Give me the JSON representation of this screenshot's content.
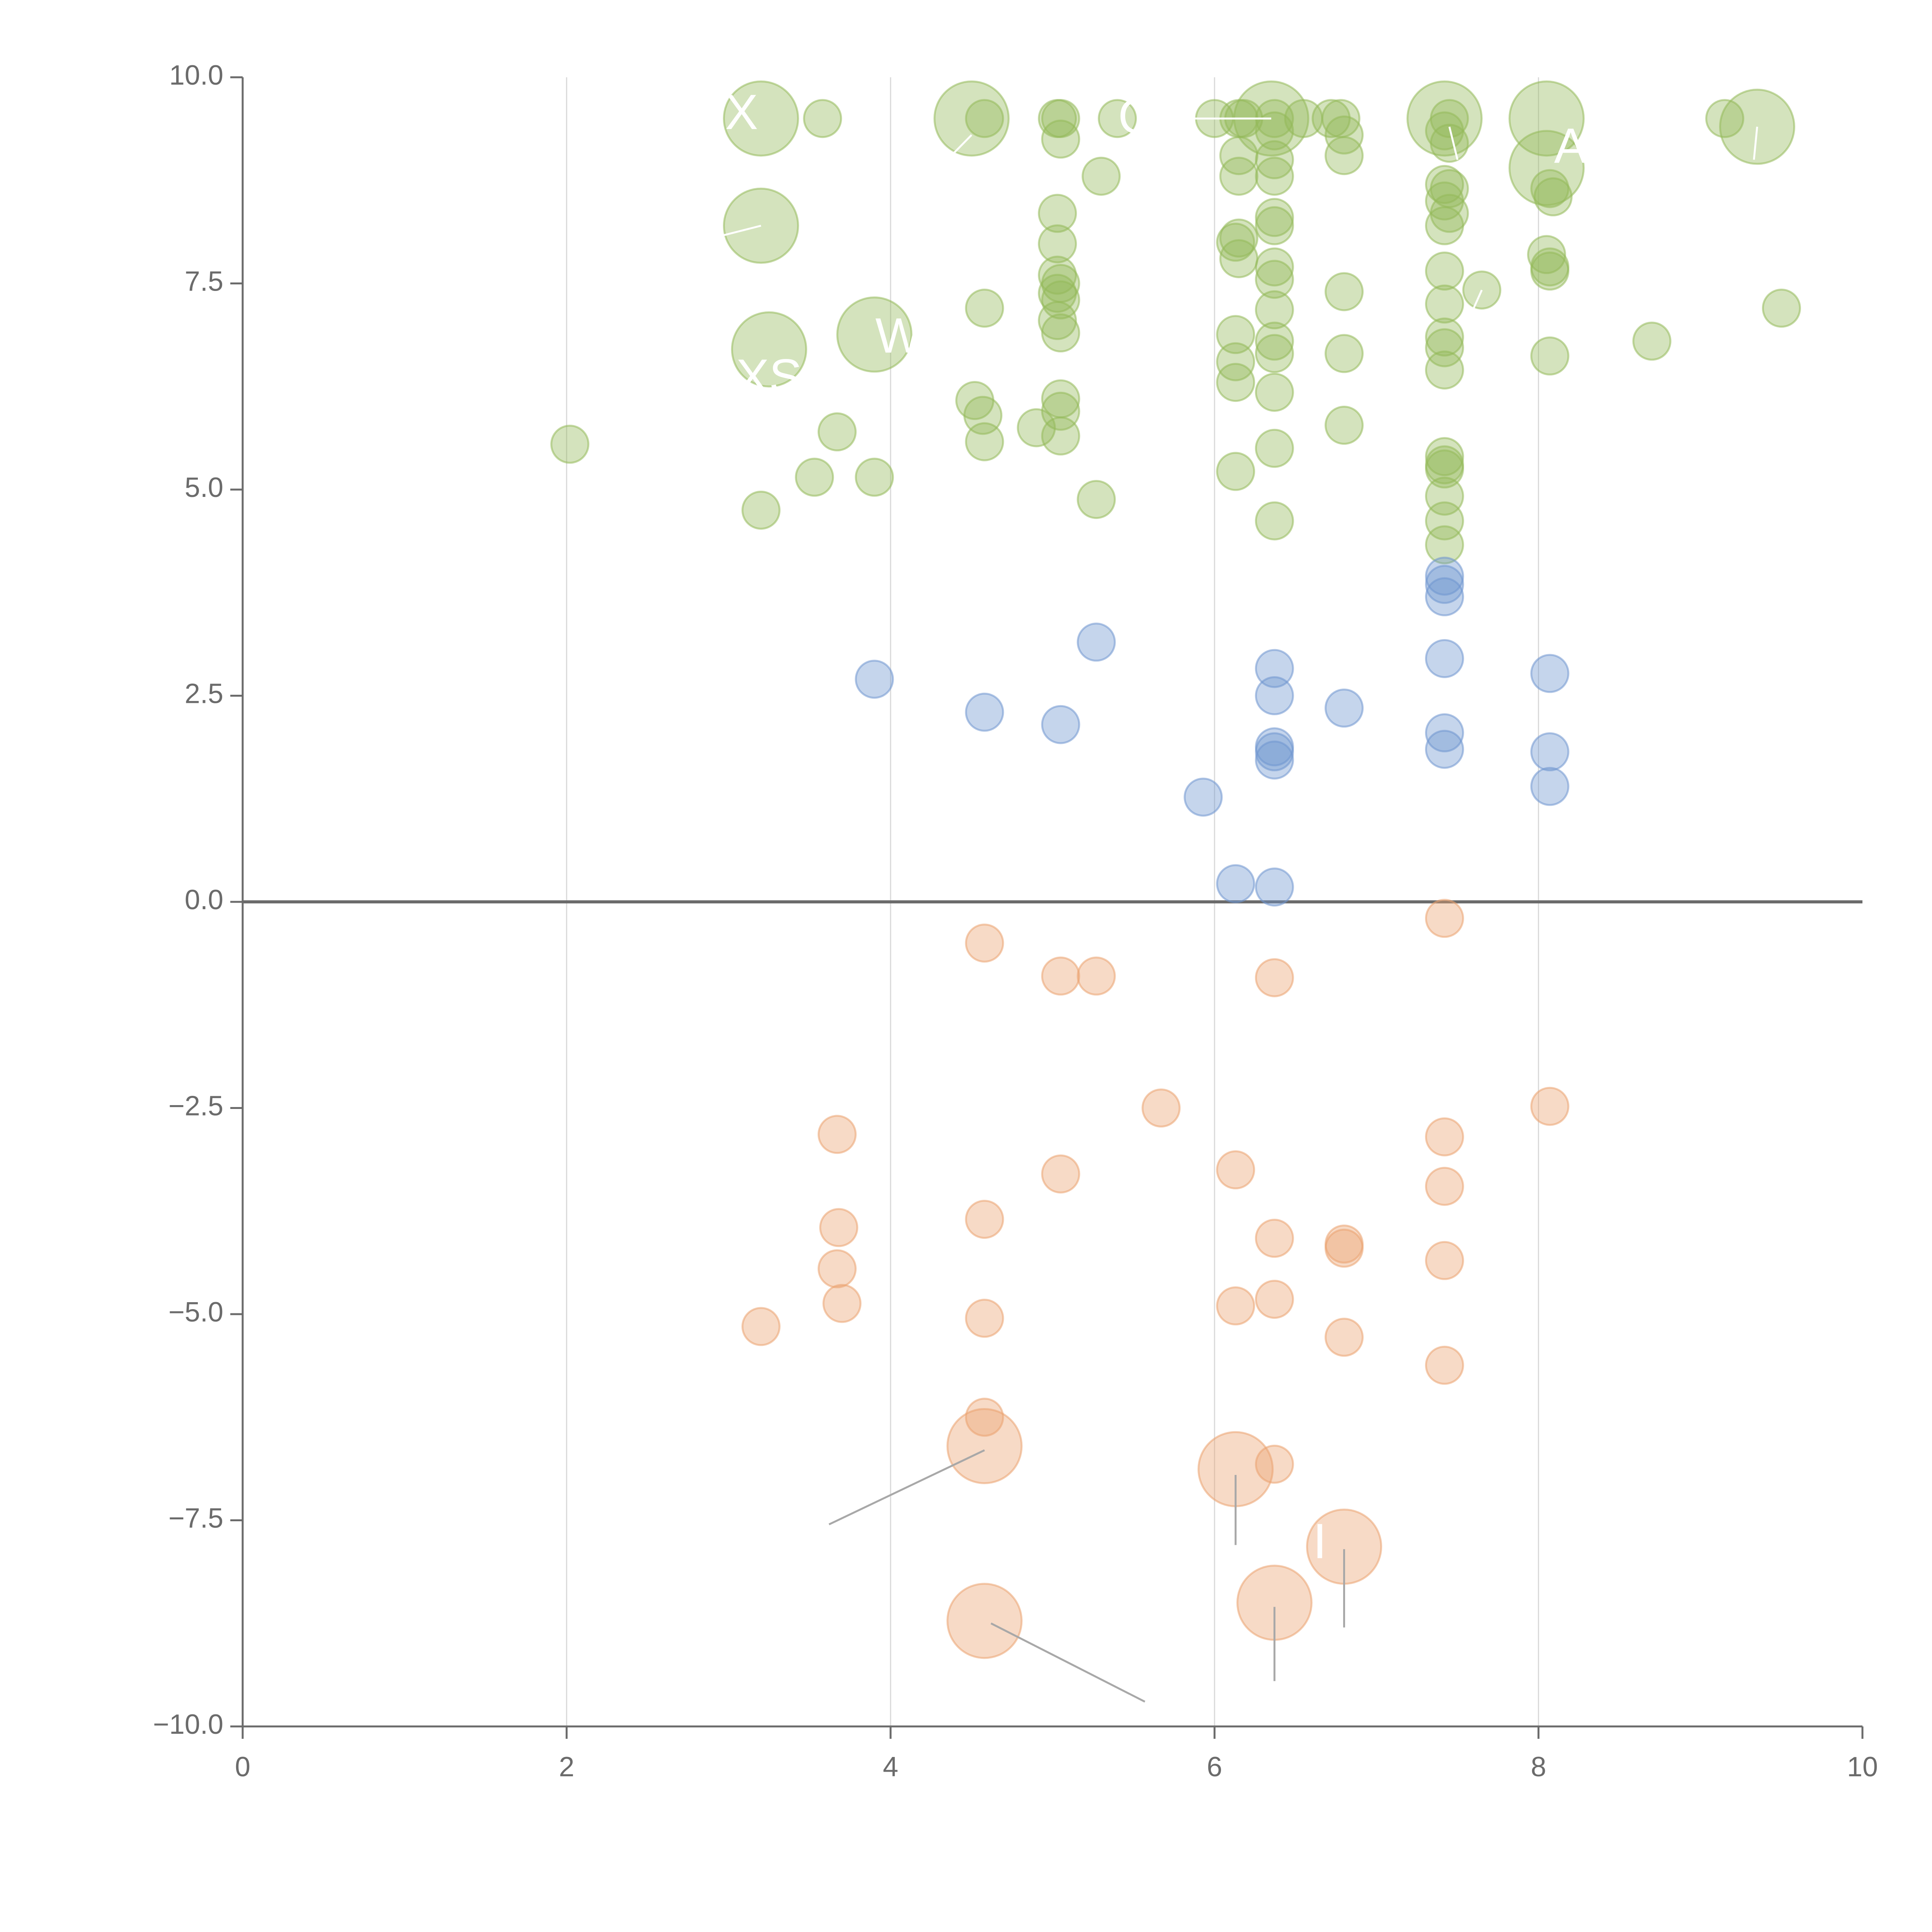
{
  "chart_data": {
    "type": "scatter",
    "title": "",
    "xlabel": "",
    "ylabel": "",
    "xlim": [
      0,
      10
    ],
    "ylim": [
      -10,
      10
    ],
    "x_ticks": [
      "0",
      "2",
      "4",
      "6",
      "8",
      "10"
    ],
    "y_ticks": [
      "10.0",
      "7.5",
      "5.0",
      "2.5",
      "0.0",
      "−2.5",
      "−5.0",
      "−7.5",
      "−10.0"
    ],
    "grid": "vertical",
    "zero_line": true,
    "colors": {
      "high": "#93b95a",
      "mid": "#6f96cf",
      "low": "#eba270",
      "axis": "#6b6b6b",
      "grid": "#d9d9d9",
      "leader": "#a8a8a8"
    },
    "series": [
      {
        "color_key": "high",
        "points": [
          [
            3.2,
            9.5,
            1
          ],
          [
            3.58,
            9.5,
            0
          ],
          [
            4.5,
            9.5,
            1
          ],
          [
            4.58,
            9.5,
            0
          ],
          [
            5.03,
            9.5,
            0
          ],
          [
            5.05,
            9.5,
            0
          ],
          [
            5.4,
            9.5,
            0
          ],
          [
            6.0,
            9.5,
            0
          ],
          [
            6.15,
            9.5,
            0
          ],
          [
            6.18,
            9.5,
            0
          ],
          [
            6.35,
            9.5,
            1
          ],
          [
            6.37,
            9.5,
            0
          ],
          [
            6.55,
            9.5,
            0
          ],
          [
            6.72,
            9.5,
            0
          ],
          [
            6.78,
            9.5,
            0
          ],
          [
            7.42,
            9.5,
            1
          ],
          [
            7.45,
            9.5,
            0
          ],
          [
            8.05,
            9.5,
            1
          ],
          [
            9.15,
            9.5,
            0
          ],
          [
            9.35,
            9.4,
            1
          ],
          [
            5.05,
            9.25,
            0
          ],
          [
            6.37,
            9.35,
            0
          ],
          [
            6.8,
            9.3,
            0
          ],
          [
            7.42,
            9.35,
            0
          ],
          [
            7.45,
            9.2,
            0
          ],
          [
            6.15,
            9.05,
            0
          ],
          [
            6.37,
            9.0,
            0
          ],
          [
            6.8,
            9.05,
            0
          ],
          [
            8.05,
            8.9,
            1
          ],
          [
            5.3,
            8.8,
            0
          ],
          [
            6.15,
            8.8,
            0
          ],
          [
            6.37,
            8.8,
            0
          ],
          [
            7.42,
            8.7,
            0
          ],
          [
            7.45,
            8.65,
            0
          ],
          [
            8.07,
            8.65,
            0
          ],
          [
            8.09,
            8.55,
            0
          ],
          [
            7.42,
            8.5,
            0
          ],
          [
            7.45,
            8.35,
            0
          ],
          [
            5.03,
            8.35,
            0
          ],
          [
            6.37,
            8.3,
            0
          ],
          [
            6.37,
            8.2,
            0
          ],
          [
            7.42,
            8.2,
            0
          ],
          [
            3.2,
            8.2,
            1
          ],
          [
            6.15,
            8.05,
            0
          ],
          [
            6.13,
            8.0,
            0
          ],
          [
            5.03,
            7.98,
            0
          ],
          [
            8.05,
            7.85,
            0
          ],
          [
            6.15,
            7.8,
            0
          ],
          [
            6.37,
            7.7,
            0
          ],
          [
            8.07,
            7.7,
            0
          ],
          [
            8.07,
            7.65,
            0
          ],
          [
            7.42,
            7.65,
            0
          ],
          [
            5.03,
            7.6,
            0
          ],
          [
            6.37,
            7.55,
            0
          ],
          [
            5.05,
            7.5,
            0
          ],
          [
            5.03,
            7.38,
            0
          ],
          [
            6.8,
            7.4,
            0
          ],
          [
            7.65,
            7.42,
            0
          ],
          [
            5.05,
            7.3,
            0
          ],
          [
            4.58,
            7.2,
            0
          ],
          [
            7.42,
            7.25,
            0
          ],
          [
            6.37,
            7.18,
            0
          ],
          [
            9.5,
            7.2,
            0
          ],
          [
            5.03,
            7.05,
            0
          ],
          [
            5.05,
            6.9,
            0
          ],
          [
            3.9,
            6.88,
            1
          ],
          [
            6.13,
            6.88,
            0
          ],
          [
            7.42,
            6.85,
            0
          ],
          [
            6.37,
            6.8,
            0
          ],
          [
            8.7,
            6.8,
            0
          ],
          [
            7.42,
            6.72,
            0
          ],
          [
            3.25,
            6.7,
            1
          ],
          [
            6.37,
            6.65,
            0
          ],
          [
            6.8,
            6.65,
            0
          ],
          [
            8.07,
            6.62,
            0
          ],
          [
            6.13,
            6.55,
            0
          ],
          [
            7.42,
            6.45,
            0
          ],
          [
            6.13,
            6.3,
            0
          ],
          [
            6.37,
            6.18,
            0
          ],
          [
            4.52,
            6.08,
            0
          ],
          [
            5.05,
            6.1,
            0
          ],
          [
            4.57,
            5.9,
            0
          ],
          [
            5.05,
            5.95,
            0
          ],
          [
            4.9,
            5.75,
            0
          ],
          [
            6.8,
            5.78,
            0
          ],
          [
            3.67,
            5.7,
            0
          ],
          [
            5.05,
            5.65,
            0
          ],
          [
            4.58,
            5.58,
            0
          ],
          [
            2.02,
            5.55,
            0
          ],
          [
            6.37,
            5.5,
            0
          ],
          [
            7.42,
            5.4,
            0
          ],
          [
            7.42,
            5.3,
            0
          ],
          [
            7.42,
            5.25,
            0
          ],
          [
            6.13,
            5.22,
            0
          ],
          [
            3.53,
            5.15,
            0
          ],
          [
            3.9,
            5.15,
            0
          ],
          [
            7.42,
            4.92,
            0
          ],
          [
            5.27,
            4.88,
            0
          ],
          [
            3.2,
            4.75,
            0
          ],
          [
            6.37,
            4.62,
            0
          ],
          [
            7.42,
            4.62,
            0
          ],
          [
            7.42,
            4.33,
            0
          ]
        ]
      },
      {
        "color_key": "mid",
        "points": [
          [
            7.42,
            3.95,
            0
          ],
          [
            7.42,
            3.85,
            0
          ],
          [
            7.42,
            3.7,
            0
          ],
          [
            5.27,
            3.15,
            0
          ],
          [
            7.42,
            2.95,
            0
          ],
          [
            6.37,
            2.83,
            0
          ],
          [
            8.07,
            2.77,
            0
          ],
          [
            3.9,
            2.7,
            0
          ],
          [
            6.37,
            2.5,
            0
          ],
          [
            6.8,
            2.35,
            0
          ],
          [
            4.58,
            2.3,
            0
          ],
          [
            5.05,
            2.15,
            0
          ],
          [
            7.42,
            2.05,
            0
          ],
          [
            6.37,
            1.88,
            0
          ],
          [
            6.37,
            1.82,
            0
          ],
          [
            7.42,
            1.85,
            0
          ],
          [
            8.07,
            1.82,
            0
          ],
          [
            6.37,
            1.72,
            0
          ],
          [
            8.07,
            1.4,
            0
          ],
          [
            5.93,
            1.27,
            0
          ],
          [
            6.13,
            0.22,
            0
          ],
          [
            6.37,
            0.18,
            0
          ]
        ]
      },
      {
        "color_key": "low",
        "points": [
          [
            7.42,
            -0.2,
            0
          ],
          [
            4.58,
            -0.5,
            0
          ],
          [
            5.05,
            -0.9,
            0
          ],
          [
            5.27,
            -0.9,
            0
          ],
          [
            6.37,
            -0.92,
            0
          ],
          [
            8.07,
            -2.48,
            0
          ],
          [
            5.67,
            -2.5,
            0
          ],
          [
            3.67,
            -2.82,
            0
          ],
          [
            7.42,
            -2.85,
            0
          ],
          [
            6.13,
            -3.25,
            0
          ],
          [
            5.05,
            -3.3,
            0
          ],
          [
            7.42,
            -3.45,
            0
          ],
          [
            4.58,
            -3.85,
            0
          ],
          [
            3.68,
            -3.95,
            0
          ],
          [
            6.37,
            -4.08,
            0
          ],
          [
            6.8,
            -4.15,
            0
          ],
          [
            6.8,
            -4.2,
            0
          ],
          [
            7.42,
            -4.35,
            0
          ],
          [
            3.67,
            -4.45,
            0
          ],
          [
            6.37,
            -4.82,
            0
          ],
          [
            3.7,
            -4.87,
            0
          ],
          [
            6.13,
            -4.9,
            0
          ],
          [
            4.58,
            -5.05,
            0
          ],
          [
            3.2,
            -5.15,
            0
          ],
          [
            6.8,
            -5.28,
            0
          ],
          [
            7.42,
            -5.62,
            0
          ],
          [
            4.58,
            -6.25,
            0
          ],
          [
            4.58,
            -6.6,
            1
          ],
          [
            6.37,
            -6.82,
            0
          ],
          [
            6.13,
            -6.88,
            1
          ],
          [
            6.8,
            -7.82,
            1
          ],
          [
            6.37,
            -8.5,
            1
          ],
          [
            4.58,
            -8.72,
            1
          ]
        ]
      }
    ],
    "labels": [
      {
        "text": "X",
        "x": 3.08,
        "y": 9.53
      },
      {
        "text": "GM",
        "x": 5.65,
        "y": 9.48
      },
      {
        "text": "AP",
        "x": 8.3,
        "y": 9.12
      },
      {
        "text": "W",
        "x": 4.05,
        "y": 6.82
      },
      {
        "text": "XS",
        "x": 3.25,
        "y": 6.32
      },
      {
        "text": "I",
        "x": 6.65,
        "y": -7.8
      }
    ],
    "leaders": [
      {
        "from": [
          4.58,
          -6.65
        ],
        "to": [
          3.62,
          -7.55
        ],
        "color_key": "leader"
      },
      {
        "from": [
          6.13,
          -6.95
        ],
        "to": [
          6.13,
          -7.8
        ],
        "color_key": "leader"
      },
      {
        "from": [
          6.8,
          -7.85
        ],
        "to": [
          6.8,
          -8.8
        ],
        "color_key": "leader"
      },
      {
        "from": [
          6.37,
          -8.55
        ],
        "to": [
          6.37,
          -9.45
        ],
        "color_key": "leader"
      },
      {
        "from": [
          4.62,
          -8.75
        ],
        "to": [
          5.57,
          -9.7
        ],
        "color_key": "leader"
      },
      {
        "from": [
          6.35,
          9.5
        ],
        "to": [
          5.75,
          9.5
        ],
        "color_key": "white"
      },
      {
        "from": [
          4.5,
          9.3
        ],
        "to": [
          4.35,
          9.0
        ],
        "color_key": "white"
      },
      {
        "from": [
          3.2,
          8.2
        ],
        "to": [
          2.8,
          8.0
        ],
        "color_key": "white"
      },
      {
        "from": [
          7.45,
          9.4
        ],
        "to": [
          7.5,
          9.0
        ],
        "color_key": "white"
      },
      {
        "from": [
          7.65,
          7.42
        ],
        "to": [
          7.6,
          7.2
        ],
        "color_key": "white"
      },
      {
        "from": [
          9.35,
          9.4
        ],
        "to": [
          9.33,
          9.0
        ],
        "color_key": "white"
      }
    ]
  }
}
